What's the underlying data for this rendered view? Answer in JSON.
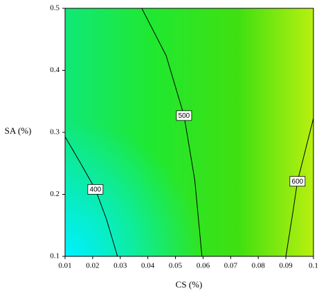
{
  "chart_data": {
    "type": "contour",
    "x_label": "CS (%)",
    "y_label": "SA (%)",
    "xlim": [
      0.01,
      0.1
    ],
    "ylim": [
      0.1,
      0.5
    ],
    "xticks": [
      0.01,
      0.02,
      0.03,
      0.04,
      0.05,
      0.06,
      0.07,
      0.08,
      0.09,
      0.1
    ],
    "yticks": [
      0.1,
      0.2,
      0.3,
      0.4,
      0.5
    ],
    "line_color": "#000000",
    "contours": [
      {
        "level": 400,
        "x": [
          0.01,
          0.015,
          0.021,
          0.025,
          0.029
        ],
        "y": [
          0.293,
          0.255,
          0.208,
          0.16,
          0.1
        ]
      },
      {
        "level": 500,
        "x": [
          0.0378,
          0.0466,
          0.0531,
          0.057,
          0.0596
        ],
        "y": [
          0.5,
          0.424,
          0.327,
          0.223,
          0.1
        ]
      },
      {
        "level": 600,
        "x": [
          0.09,
          0.0925,
          0.0942,
          0.097,
          0.1
        ],
        "y": [
          0.1,
          0.17,
          0.221,
          0.27,
          0.323
        ]
      }
    ]
  }
}
